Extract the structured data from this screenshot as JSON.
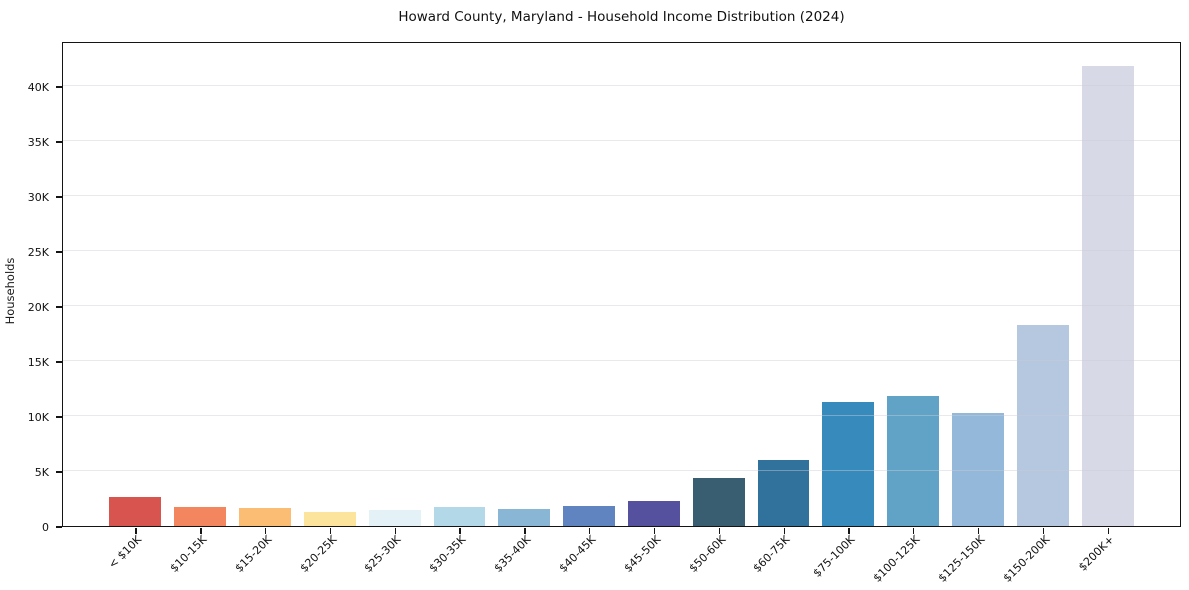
{
  "title": "Howard County, Maryland - Household Income Distribution (2024)",
  "chart_data": {
    "type": "bar",
    "title": "Howard County, Maryland - Household Income Distribution (2024)",
    "xlabel": "",
    "ylabel": "Households",
    "categories": [
      "< $10K",
      "$10-15K",
      "$15-20K",
      "$20-25K",
      "$25-30K",
      "$30-35K",
      "$35-40K",
      "$40-45K",
      "$45-50K",
      "$50-60K",
      "$60-75K",
      "$75-100K",
      "$100-125K",
      "$125-150K",
      "$150-200K",
      "$200K+"
    ],
    "values": [
      2650,
      1700,
      1600,
      1250,
      1500,
      1750,
      1550,
      1850,
      2300,
      4400,
      6000,
      11300,
      11850,
      10350,
      18350,
      42000
    ],
    "bar_colors": [
      "#d8544f",
      "#f4865f",
      "#fbbc74",
      "#fde49c",
      "#e4f1f7",
      "#b3d9e8",
      "#8ab6d6",
      "#6084bf",
      "#55519f",
      "#3a5e71",
      "#31729c",
      "#378abc",
      "#60a3c6",
      "#93b8d9",
      "#b6c7e0",
      "#d7d9e6"
    ],
    "ylim": [
      0,
      44100
    ],
    "yticks": [
      0,
      5000,
      10000,
      15000,
      20000,
      25000,
      30000,
      35000,
      40000
    ],
    "ytick_labels": [
      "0",
      "5K",
      "10K",
      "15K",
      "20K",
      "25K",
      "30K",
      "35K",
      "40K"
    ],
    "grid": "horizontal gridlines at y ticks, drawn lightly over bars",
    "gridline_color": "#e6e6ee",
    "background": "#ffffff",
    "legend": "none",
    "x_label_rotation_deg": 45
  }
}
